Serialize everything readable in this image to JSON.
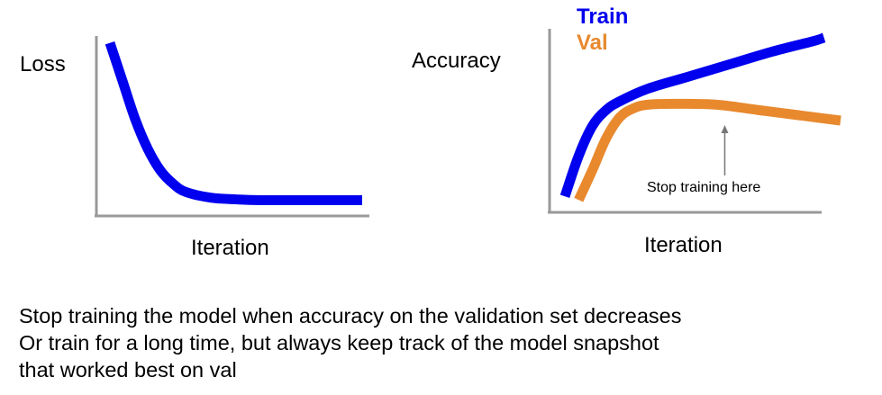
{
  "loss_chart": {
    "ylabel": "Loss",
    "xlabel": "Iteration"
  },
  "accuracy_chart": {
    "ylabel": "Accuracy",
    "xlabel": "Iteration",
    "legend": [
      "Train",
      "Val"
    ],
    "annotation": "Stop training here"
  },
  "caption": [
    "Stop training the model when accuracy on the validation set decreases",
    "Or train for a long time, but always keep track of the model snapshot",
    "that worked best on val"
  ],
  "chart_data": [
    {
      "type": "line",
      "title": "",
      "xlabel": "Iteration",
      "ylabel": "Loss",
      "xlim": [
        0,
        1
      ],
      "ylim": [
        0,
        1
      ],
      "grid": false,
      "series": [
        {
          "color": "#0000ee",
          "x": [
            0.0,
            0.05,
            0.1,
            0.15,
            0.2,
            0.25,
            0.3,
            0.4,
            0.5,
            0.6,
            0.8,
            1.0
          ],
          "y": [
            0.98,
            0.75,
            0.52,
            0.34,
            0.21,
            0.13,
            0.08,
            0.045,
            0.035,
            0.03,
            0.03,
            0.03
          ]
        }
      ]
    },
    {
      "type": "line",
      "title": "",
      "xlabel": "Iteration",
      "ylabel": "Accuracy",
      "xlim": [
        0,
        1
      ],
      "ylim": [
        0,
        1
      ],
      "grid": false,
      "legend": "top-left",
      "annotation": {
        "text": "Stop training here",
        "x": 0.58
      },
      "series": [
        {
          "name": "Train",
          "color": "#0000ee",
          "x": [
            0.0,
            0.05,
            0.1,
            0.15,
            0.2,
            0.3,
            0.45,
            0.6,
            0.75,
            0.9,
            0.94
          ],
          "y": [
            0.07,
            0.3,
            0.47,
            0.56,
            0.61,
            0.68,
            0.75,
            0.82,
            0.89,
            0.95,
            0.97
          ]
        },
        {
          "name": "Val",
          "color": "#e8892e",
          "x": [
            0.05,
            0.1,
            0.15,
            0.2,
            0.25,
            0.3,
            0.4,
            0.55,
            0.7,
            0.85,
            1.0
          ],
          "y": [
            0.05,
            0.22,
            0.4,
            0.52,
            0.57,
            0.59,
            0.595,
            0.59,
            0.56,
            0.53,
            0.5
          ]
        }
      ]
    }
  ]
}
